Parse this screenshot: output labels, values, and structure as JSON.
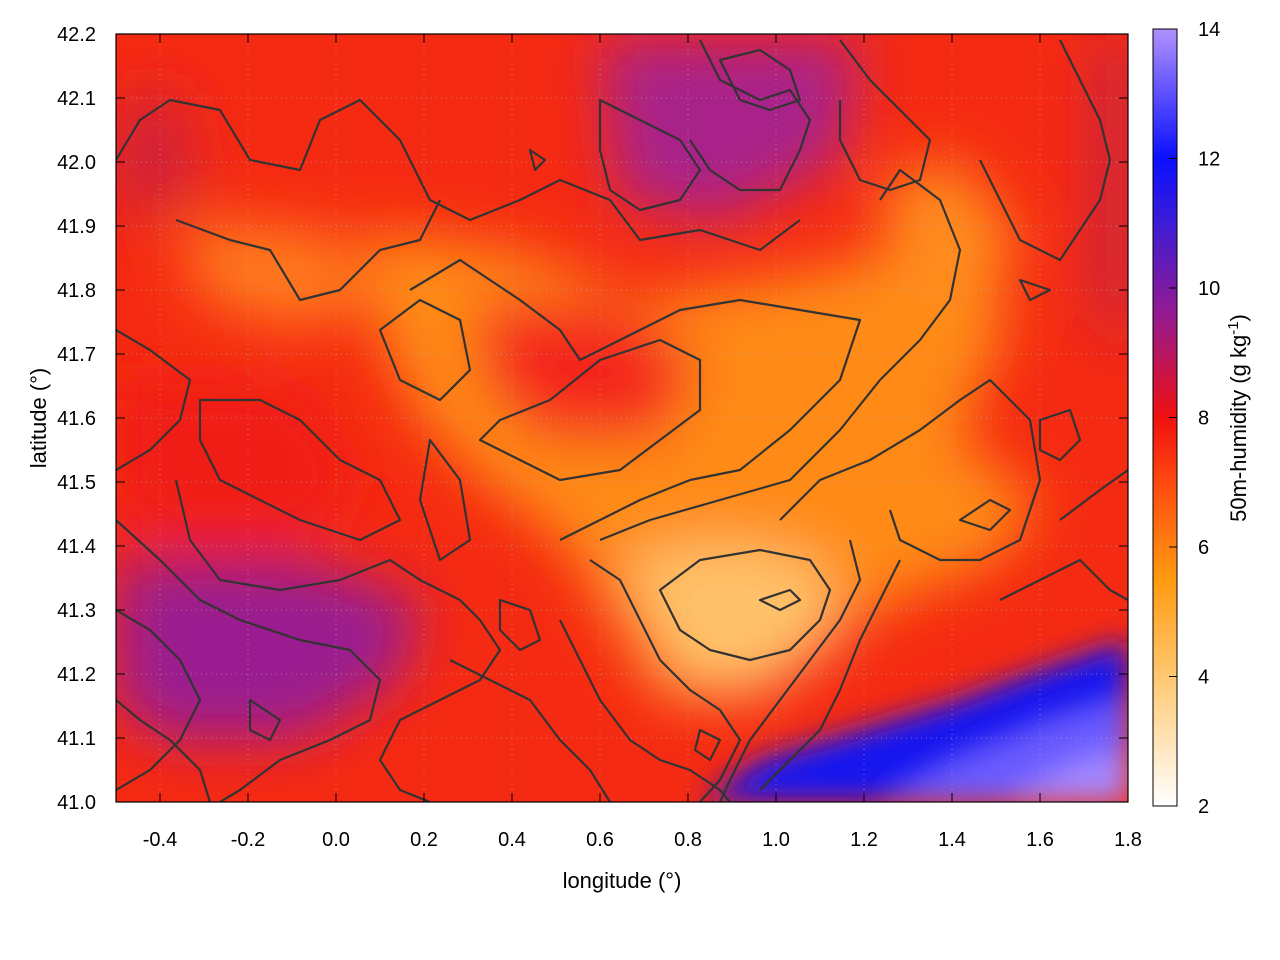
{
  "chart_data": {
    "type": "heatmap",
    "xlabel": "longitude (°)",
    "ylabel": "latitude (°)",
    "colorbar_label_main": "50m-humidity (g kg",
    "colorbar_label_sup": "-1",
    "colorbar_label_end": ")",
    "xlim": [
      -0.5,
      1.8
    ],
    "ylim": [
      41.0,
      42.2
    ],
    "x_ticks": [
      -0.4,
      -0.2,
      0.0,
      0.2,
      0.4,
      0.6,
      0.8,
      1.0,
      1.2,
      1.4,
      1.6,
      1.8
    ],
    "x_tick_labels": [
      "-0.4",
      "-0.2",
      "0.0",
      "0.2",
      "0.4",
      "0.6",
      "0.8",
      "1.0",
      "1.2",
      "1.4",
      "1.6",
      "1.8"
    ],
    "y_ticks": [
      41.0,
      41.1,
      41.2,
      41.3,
      41.4,
      41.5,
      41.6,
      41.7,
      41.8,
      41.9,
      42.0,
      42.1,
      42.2
    ],
    "y_tick_labels": [
      "41.0",
      "41.1",
      "41.2",
      "41.3",
      "41.4",
      "41.5",
      "41.6",
      "41.7",
      "41.8",
      "41.9",
      "42.0",
      "42.1",
      "42.2"
    ],
    "colorbar_range": [
      2,
      14
    ],
    "colorbar_ticks": [
      2,
      4,
      6,
      8,
      10,
      12,
      14
    ],
    "colorbar_tick_labels": [
      "2",
      "4",
      "6",
      "8",
      "10",
      "12",
      "14"
    ],
    "colormap": [
      {
        "value": 2,
        "color": "#ffffff"
      },
      {
        "value": 4,
        "color": "#ffc870"
      },
      {
        "value": 5.5,
        "color": "#ff9a10"
      },
      {
        "value": 7,
        "color": "#ff4a10"
      },
      {
        "value": 8,
        "color": "#f01010"
      },
      {
        "value": 9.5,
        "color": "#9a1a8a"
      },
      {
        "value": 11,
        "color": "#3c1cd6"
      },
      {
        "value": 12,
        "color": "#0a10ff"
      },
      {
        "value": 14,
        "color": "#b090ff"
      }
    ],
    "grid": true,
    "grid_style": "dotted",
    "contour_color": "#333333"
  }
}
